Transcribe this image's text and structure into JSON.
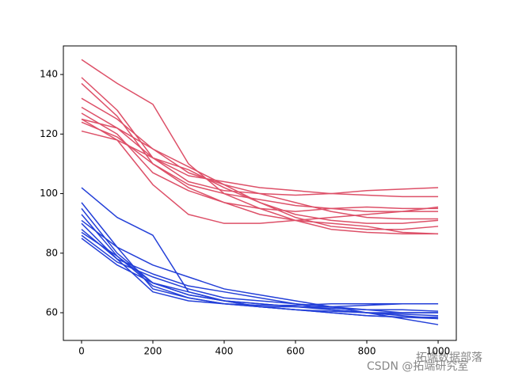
{
  "chart_data": {
    "type": "line",
    "x": [
      0,
      100,
      200,
      300,
      400,
      500,
      600,
      700,
      800,
      900,
      1000
    ],
    "series": [
      {
        "color": "#dd5068",
        "values": [
          145,
          137,
          130,
          110,
          100,
          95,
          91,
          88,
          87,
          86.5,
          86.5
        ]
      },
      {
        "color": "#dd5068",
        "values": [
          139,
          128,
          112,
          104,
          101,
          100,
          99.5,
          100,
          101,
          101.5,
          102
        ]
      },
      {
        "color": "#dd5068",
        "values": [
          137,
          126,
          110,
          103,
          100,
          98,
          96,
          95,
          94,
          94,
          94
        ]
      },
      {
        "color": "#dd5068",
        "values": [
          132,
          125,
          115,
          107,
          103,
          100,
          97,
          94,
          92,
          91.5,
          91.5
        ]
      },
      {
        "color": "#dd5068",
        "values": [
          129,
          122,
          112,
          106,
          104,
          102,
          101,
          100,
          99.5,
          99,
          99
        ]
      },
      {
        "color": "#dd5068",
        "values": [
          127,
          120,
          107,
          101,
          97,
          95,
          94,
          95,
          95.5,
          95,
          95
        ]
      },
      {
        "color": "#dd5068",
        "values": [
          125,
          118,
          112,
          108,
          102,
          97,
          92,
          89,
          88,
          88,
          89
        ]
      },
      {
        "color": "#dd5068",
        "values": [
          124,
          119,
          110,
          102,
          97,
          93,
          91,
          90,
          89,
          87,
          86.5
        ]
      },
      {
        "color": "#dd5068",
        "values": [
          121,
          118,
          103,
          93,
          90,
          90,
          91,
          92,
          93,
          94,
          95.5
        ]
      },
      {
        "color": "#dd5068",
        "values": [
          125,
          122,
          115,
          109,
          103,
          97,
          93,
          91,
          90,
          90,
          91
        ]
      },
      {
        "color": "#2440d8",
        "values": [
          102,
          92,
          86,
          67,
          64,
          63,
          62,
          61,
          60,
          59.5,
          59
        ]
      },
      {
        "color": "#2440d8",
        "values": [
          97,
          82,
          68,
          65,
          63,
          62,
          62,
          62,
          62.5,
          63,
          63
        ]
      },
      {
        "color": "#2440d8",
        "values": [
          95,
          80,
          70,
          66,
          64,
          63,
          62,
          61.5,
          61,
          61,
          60.5
        ]
      },
      {
        "color": "#2440d8",
        "values": [
          93,
          79,
          69,
          65,
          63,
          62,
          61,
          60.5,
          60,
          60,
          60
        ]
      },
      {
        "color": "#2440d8",
        "values": [
          91,
          82,
          76,
          72,
          68,
          66,
          64,
          62,
          60,
          58,
          56
        ]
      },
      {
        "color": "#2440d8",
        "values": [
          90,
          78,
          73,
          69,
          67,
          65,
          63,
          61,
          60,
          59,
          58
        ]
      },
      {
        "color": "#2440d8",
        "values": [
          88,
          78,
          67,
          64,
          63,
          62.5,
          62.5,
          63,
          63,
          63,
          63
        ]
      },
      {
        "color": "#2440d8",
        "values": [
          87,
          79,
          70,
          66,
          64,
          62,
          61,
          60,
          59,
          58.5,
          58
        ]
      },
      {
        "color": "#2440d8",
        "values": [
          86,
          77,
          72,
          68,
          65,
          64,
          63,
          62,
          61,
          60,
          60
        ]
      },
      {
        "color": "#2440d8",
        "values": [
          85,
          76,
          70,
          67,
          64,
          62,
          61,
          60,
          59,
          58.5,
          58.5
        ]
      }
    ],
    "xlim": [
      -51,
      1051
    ],
    "xticks": [
      0,
      200,
      400,
      600,
      800,
      1000
    ],
    "ylim": [
      50.7,
      149.6
    ],
    "yticks": [
      60,
      80,
      100,
      120,
      140
    ],
    "annotations": [
      "拓端数据部落",
      "CSDN @拓端研究室"
    ]
  }
}
